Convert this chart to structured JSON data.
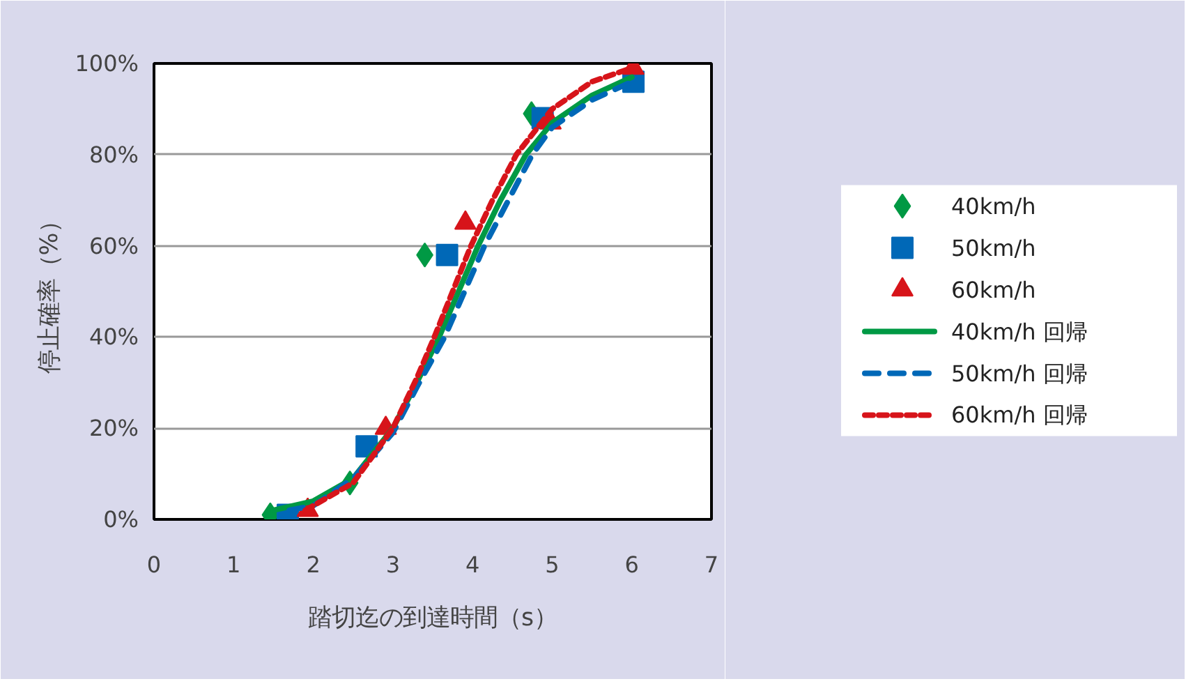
{
  "chart_data": {
    "type": "scatter",
    "xlabel": "踏切迄の到達時間（s）",
    "ylabel": "停止確率（%）",
    "xlim": [
      0,
      7
    ],
    "xticks": [
      0,
      1,
      2,
      3,
      4,
      5,
      6,
      7
    ],
    "ylim": [
      0,
      100
    ],
    "yticks": [
      {
        "value": 0,
        "label": "0%"
      },
      {
        "value": 20,
        "label": "20%"
      },
      {
        "value": 40,
        "label": "40%"
      },
      {
        "value": 60,
        "label": "60%"
      },
      {
        "value": 80,
        "label": "80%"
      },
      {
        "value": 100,
        "label": "100%"
      }
    ],
    "grid": "y",
    "legend": "right",
    "tick_labels": "xy",
    "series": [
      {
        "name": "40km/h",
        "marker": "diamond",
        "color": "#009944",
        "x": [
          1.46,
          2.46,
          3.4,
          4.74
        ],
        "values": [
          1,
          8,
          58,
          89
        ]
      },
      {
        "name": "50km/h",
        "marker": "square",
        "color": "#0068b7",
        "x": [
          1.68,
          2.67,
          3.68,
          4.88,
          6.02
        ],
        "values": [
          1,
          16,
          58,
          88,
          96
        ]
      },
      {
        "name": "60km/h",
        "marker": "triangle",
        "color": "#d7141a",
        "x": [
          1.93,
          2.91,
          3.91,
          4.98,
          6.02
        ],
        "values": [
          2,
          20,
          65,
          87,
          99
        ]
      },
      {
        "name": "40km/h 回帰",
        "type": "line",
        "line_style": "solid",
        "color": "#009944",
        "x": [
          1.5,
          2.0,
          2.5,
          3.0,
          3.3,
          3.58,
          3.8,
          4.07,
          4.35,
          4.67,
          5.0,
          5.5,
          6.0
        ],
        "values": [
          2,
          4,
          9,
          20,
          30,
          40,
          49,
          60,
          70,
          80,
          87,
          93,
          97
        ]
      },
      {
        "name": "50km/h 回帰",
        "type": "line",
        "line_style": "dashed",
        "color": "#0068b7",
        "x": [
          1.7,
          2.0,
          2.5,
          3.0,
          3.3,
          3.65,
          3.9,
          4.15,
          4.45,
          4.75,
          5.0,
          5.5,
          6.0
        ],
        "values": [
          2,
          3,
          9,
          19,
          29,
          40,
          50,
          60,
          70,
          80,
          86,
          92,
          96
        ]
      },
      {
        "name": "60km/h 回帰",
        "type": "line",
        "line_style": "dotted",
        "color": "#d7141a",
        "x": [
          1.9,
          2.5,
          3.0,
          3.3,
          3.52,
          3.75,
          3.98,
          4.25,
          4.55,
          5.0,
          5.5,
          6.0
        ],
        "values": [
          2,
          8,
          20,
          31,
          40,
          50,
          60,
          70,
          80,
          90,
          96,
          99
        ]
      }
    ]
  }
}
